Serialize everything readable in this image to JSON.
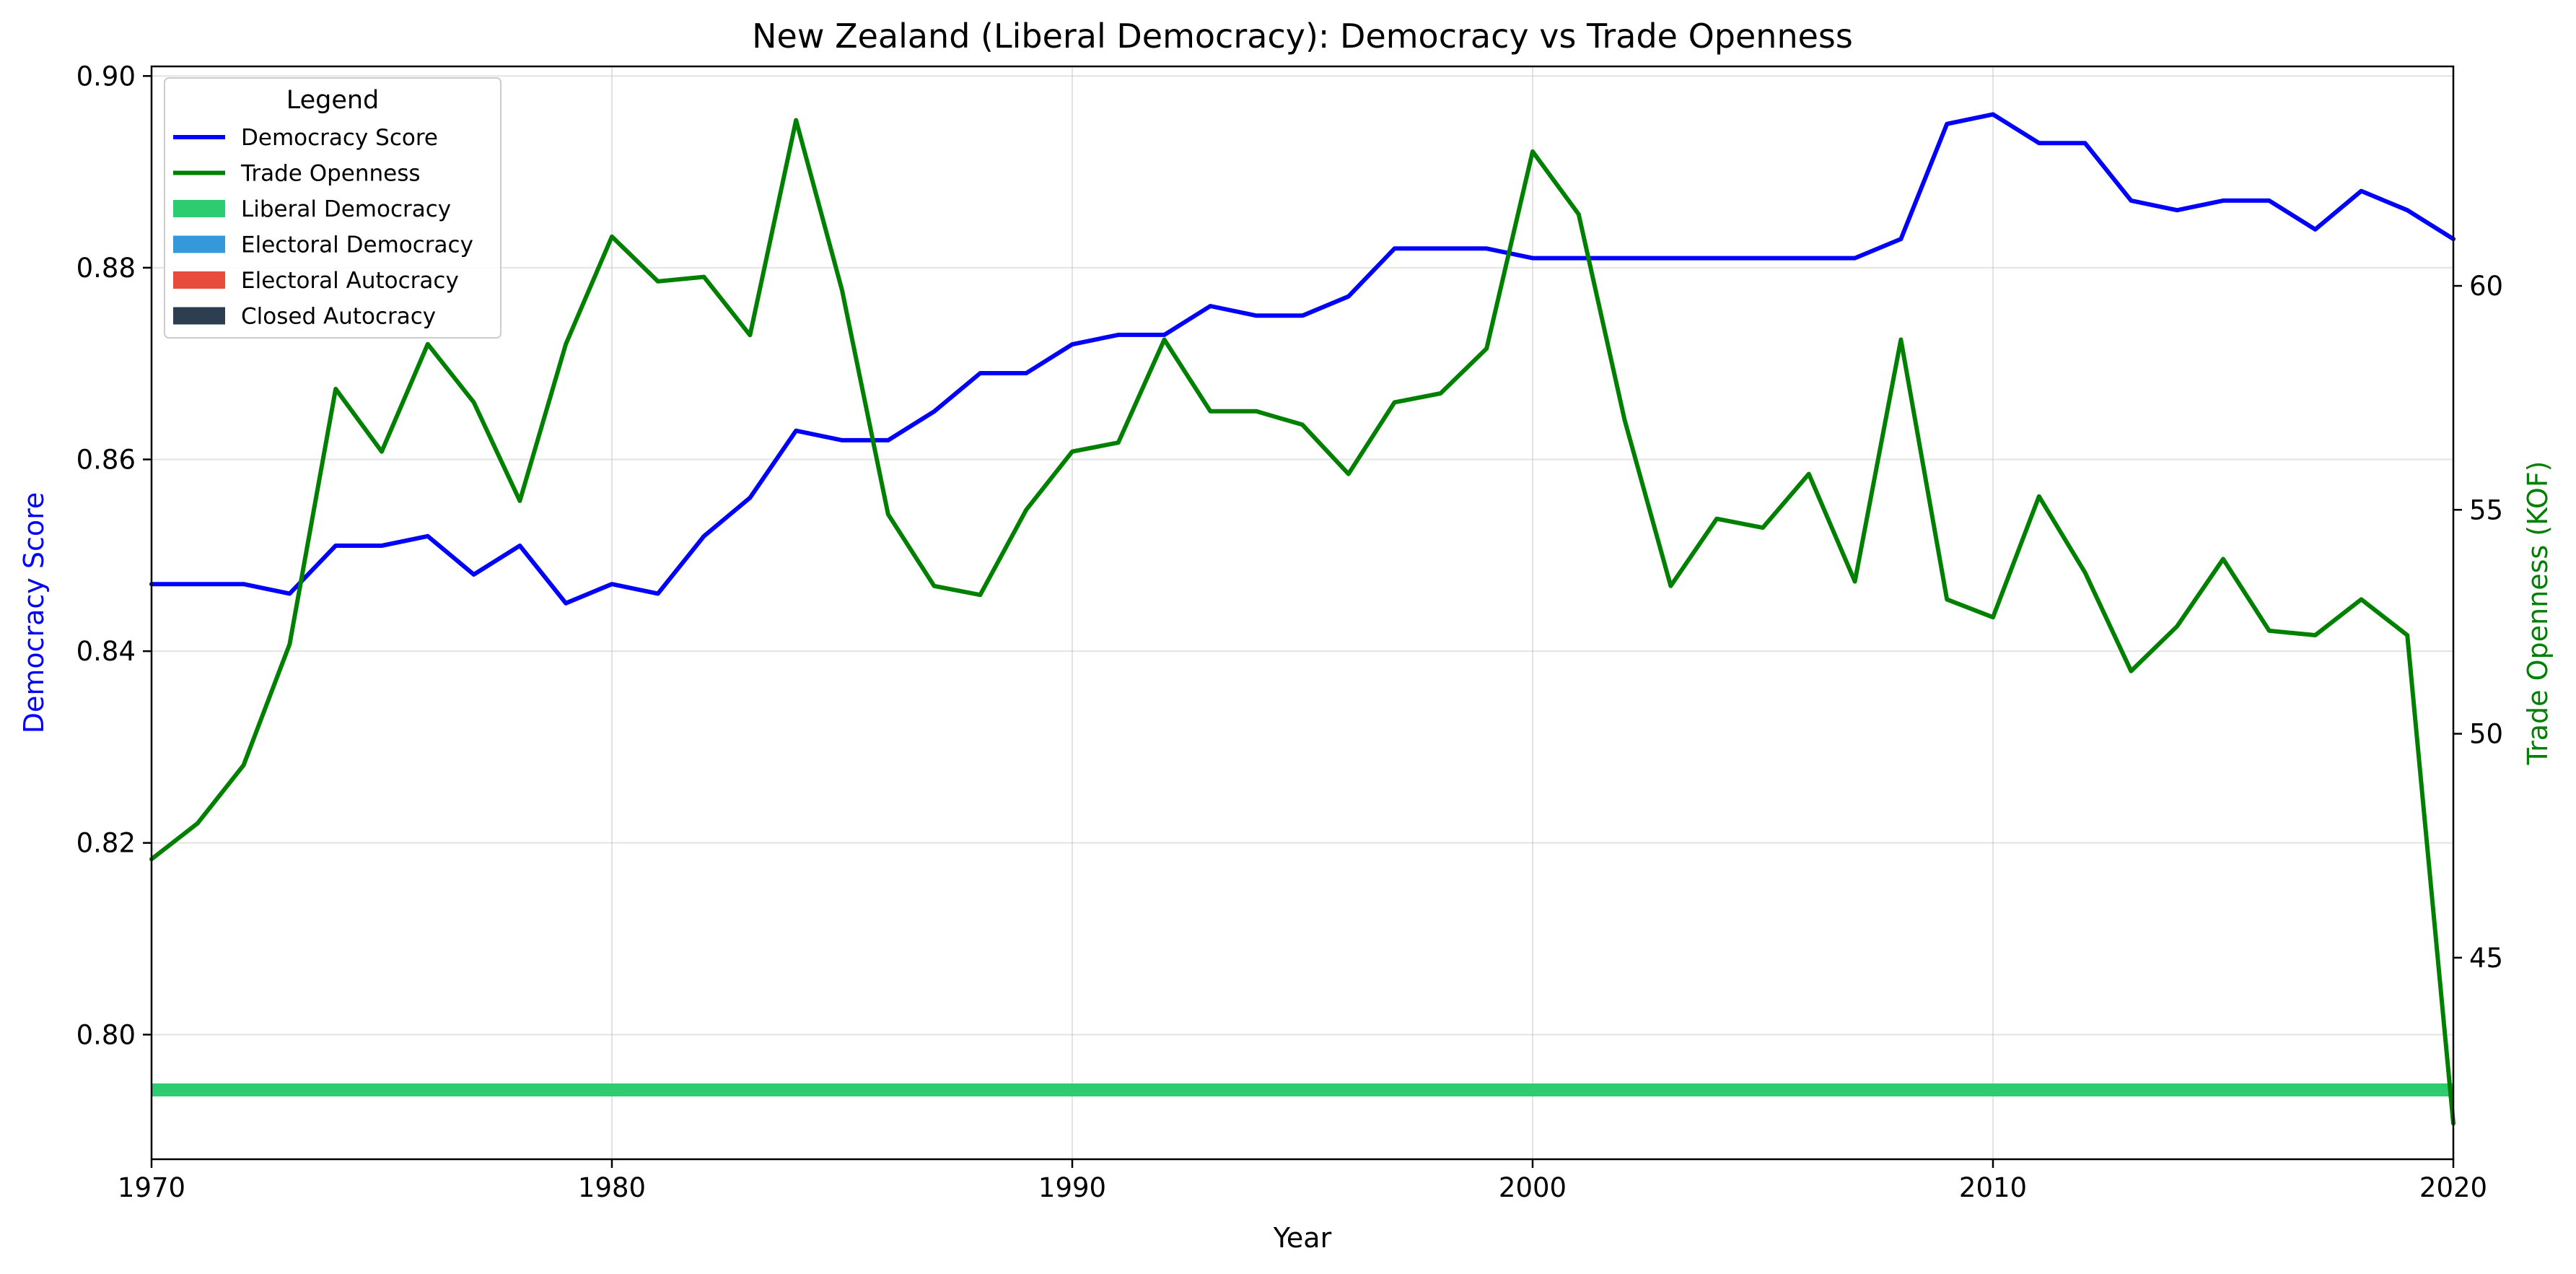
{
  "chart_data": {
    "type": "line",
    "title": "New Zealand (Liberal Democracy): Democracy vs Trade Openness",
    "xlabel": "Year",
    "ylabel_left": "Democracy Score",
    "ylabel_right": "Trade Openness (KOF)",
    "xlim": [
      1970,
      2020
    ],
    "ylim_left": [
      0.787,
      0.901
    ],
    "ylim_right": [
      40.5,
      64.9
    ],
    "x_ticks": [
      1970,
      1980,
      1990,
      2000,
      2010,
      2020
    ],
    "y_left_ticks": [
      0.8,
      0.82,
      0.84,
      0.86,
      0.88,
      0.9
    ],
    "y_right_ticks": [
      45,
      50,
      55,
      60
    ],
    "grid": true,
    "legend_title": "Legend",
    "legend_position": "top-left",
    "x": [
      1970,
      1971,
      1972,
      1973,
      1974,
      1975,
      1976,
      1977,
      1978,
      1979,
      1980,
      1981,
      1982,
      1983,
      1984,
      1985,
      1986,
      1987,
      1988,
      1989,
      1990,
      1991,
      1992,
      1993,
      1994,
      1995,
      1996,
      1997,
      1998,
      1999,
      2000,
      2001,
      2002,
      2003,
      2004,
      2005,
      2006,
      2007,
      2008,
      2009,
      2010,
      2011,
      2012,
      2013,
      2014,
      2015,
      2016,
      2017,
      2018,
      2019,
      2020
    ],
    "series": [
      {
        "name": "Democracy Score",
        "axis": "left",
        "color": "#0000ff",
        "values": [
          0.847,
          0.847,
          0.847,
          0.846,
          0.851,
          0.851,
          0.852,
          0.848,
          0.851,
          0.845,
          0.847,
          0.846,
          0.852,
          0.856,
          0.863,
          0.862,
          0.862,
          0.865,
          0.869,
          0.869,
          0.872,
          0.873,
          0.873,
          0.876,
          0.875,
          0.875,
          0.877,
          0.882,
          0.882,
          0.882,
          0.881,
          0.881,
          0.881,
          0.881,
          0.881,
          0.881,
          0.881,
          0.881,
          0.883,
          0.895,
          0.896,
          0.893,
          0.893,
          0.887,
          0.886,
          0.887,
          0.887,
          0.884,
          0.888,
          0.886,
          0.883
        ]
      },
      {
        "name": "Trade Openness",
        "axis": "right",
        "color": "#008000",
        "values": [
          47.2,
          48.0,
          49.3,
          52.0,
          57.7,
          56.3,
          58.7,
          57.4,
          55.2,
          58.7,
          61.1,
          60.1,
          60.2,
          58.9,
          63.7,
          59.9,
          54.9,
          53.3,
          53.1,
          55.0,
          56.3,
          56.5,
          58.8,
          57.2,
          57.2,
          56.9,
          55.8,
          57.4,
          57.6,
          58.6,
          63.0,
          61.6,
          57.0,
          53.3,
          54.8,
          54.6,
          55.8,
          53.4,
          58.8,
          53.0,
          52.6,
          55.3,
          53.6,
          51.4,
          52.4,
          53.9,
          52.3,
          52.2,
          53.0,
          52.2,
          41.3
        ]
      }
    ],
    "regime_band": {
      "name": "Liberal Democracy",
      "color": "#2ecc71",
      "x_range": [
        1970,
        2020
      ]
    },
    "legend": [
      {
        "label": "Democracy Score",
        "kind": "line",
        "color": "#0000ff"
      },
      {
        "label": "Trade Openness",
        "kind": "line",
        "color": "#008000"
      },
      {
        "label": "Liberal Democracy",
        "kind": "patch",
        "color": "#2ecc71"
      },
      {
        "label": "Electoral Democracy",
        "kind": "patch",
        "color": "#3498db"
      },
      {
        "label": "Electoral Autocracy",
        "kind": "patch",
        "color": "#e74c3c"
      },
      {
        "label": "Closed Autocracy",
        "kind": "patch",
        "color": "#2c3e50"
      }
    ]
  }
}
